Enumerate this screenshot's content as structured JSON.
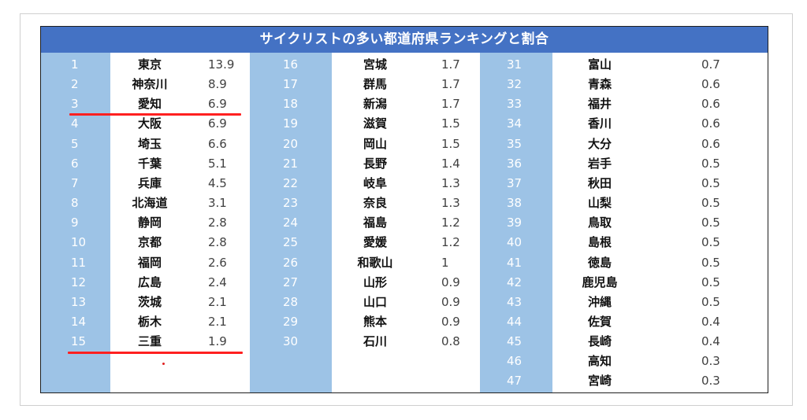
{
  "title": "サイクリストの多い都道府県ランキングと割合",
  "columns": [
    {
      "rows": [
        {
          "rank": "1",
          "name": "東京",
          "value": "13.9"
        },
        {
          "rank": "2",
          "name": "神奈川",
          "value": "8.9"
        },
        {
          "rank": "3",
          "name": "愛知",
          "value": "6.9"
        },
        {
          "rank": "4",
          "name": "大阪",
          "value": "6.9"
        },
        {
          "rank": "5",
          "name": "埼玉",
          "value": "6.6"
        },
        {
          "rank": "6",
          "name": "千葉",
          "value": "5.1"
        },
        {
          "rank": "7",
          "name": "兵庫",
          "value": "4.5"
        },
        {
          "rank": "8",
          "name": "北海道",
          "value": "3.1"
        },
        {
          "rank": "9",
          "name": "静岡",
          "value": "2.8"
        },
        {
          "rank": "10",
          "name": "京都",
          "value": "2.8"
        },
        {
          "rank": "11",
          "name": "福岡",
          "value": "2.6"
        },
        {
          "rank": "12",
          "name": "広島",
          "value": "2.4"
        },
        {
          "rank": "13",
          "name": "茨城",
          "value": "2.1"
        },
        {
          "rank": "14",
          "name": "栃木",
          "value": "2.1"
        },
        {
          "rank": "15",
          "name": "三重",
          "value": "1.9"
        }
      ]
    },
    {
      "rows": [
        {
          "rank": "16",
          "name": "宮城",
          "value": "1.7"
        },
        {
          "rank": "17",
          "name": "群馬",
          "value": "1.7"
        },
        {
          "rank": "18",
          "name": "新潟",
          "value": "1.7"
        },
        {
          "rank": "19",
          "name": "滋賀",
          "value": "1.5"
        },
        {
          "rank": "20",
          "name": "岡山",
          "value": "1.5"
        },
        {
          "rank": "21",
          "name": "長野",
          "value": "1.4"
        },
        {
          "rank": "22",
          "name": "岐阜",
          "value": "1.3"
        },
        {
          "rank": "23",
          "name": "奈良",
          "value": "1.3"
        },
        {
          "rank": "24",
          "name": "福島",
          "value": "1.2"
        },
        {
          "rank": "25",
          "name": "愛媛",
          "value": "1.2"
        },
        {
          "rank": "26",
          "name": "和歌山",
          "value": "1"
        },
        {
          "rank": "27",
          "name": "山形",
          "value": "0.9"
        },
        {
          "rank": "28",
          "name": "山口",
          "value": "0.9"
        },
        {
          "rank": "29",
          "name": "熊本",
          "value": "0.9"
        },
        {
          "rank": "30",
          "name": "石川",
          "value": "0.8"
        }
      ]
    },
    {
      "rows": [
        {
          "rank": "31",
          "name": "富山",
          "value": "0.7"
        },
        {
          "rank": "32",
          "name": "青森",
          "value": "0.6"
        },
        {
          "rank": "33",
          "name": "福井",
          "value": "0.6"
        },
        {
          "rank": "34",
          "name": "香川",
          "value": "0.6"
        },
        {
          "rank": "35",
          "name": "大分",
          "value": "0.6"
        },
        {
          "rank": "36",
          "name": "岩手",
          "value": "0.5"
        },
        {
          "rank": "37",
          "name": "秋田",
          "value": "0.5"
        },
        {
          "rank": "38",
          "name": "山梨",
          "value": "0.5"
        },
        {
          "rank": "39",
          "name": "鳥取",
          "value": "0.5"
        },
        {
          "rank": "40",
          "name": "島根",
          "value": "0.5"
        },
        {
          "rank": "41",
          "name": "徳島",
          "value": "0.5"
        },
        {
          "rank": "42",
          "name": "鹿児島",
          "value": "0.5"
        },
        {
          "rank": "43",
          "name": "沖縄",
          "value": "0.5"
        },
        {
          "rank": "44",
          "name": "佐賀",
          "value": "0.4"
        },
        {
          "rank": "45",
          "name": "長崎",
          "value": "0.4"
        },
        {
          "rank": "46",
          "name": "高知",
          "value": "0.3"
        },
        {
          "rank": "47",
          "name": "宮崎",
          "value": "0.3"
        }
      ]
    }
  ],
  "colors": {
    "title_background": "#4472c4",
    "rank_column": "#9dc3e6",
    "underline": "#ff2020"
  }
}
